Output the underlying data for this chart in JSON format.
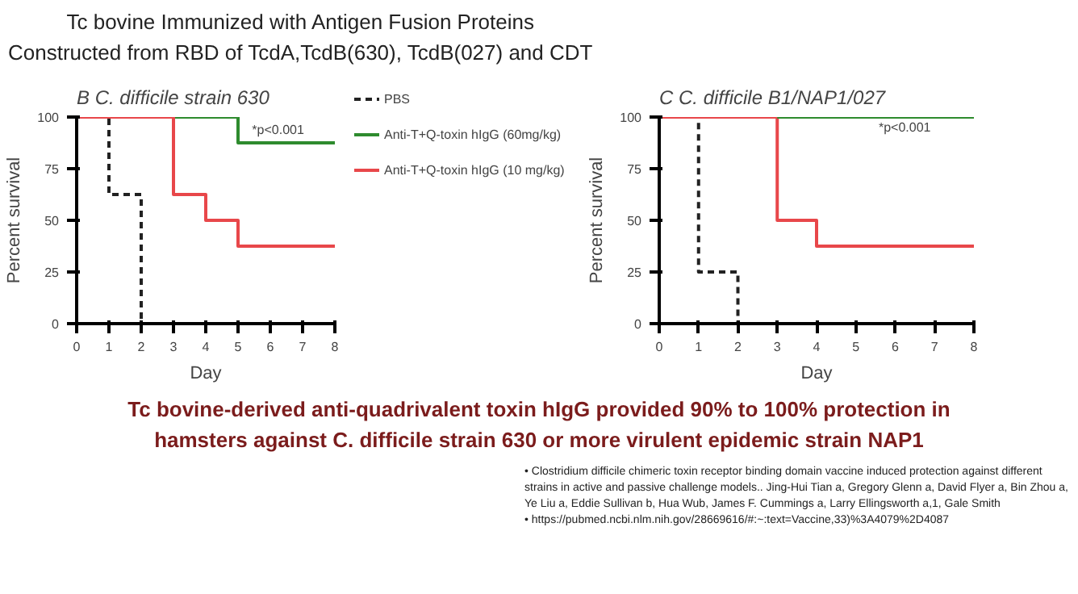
{
  "chart_data": [
    {
      "type": "step",
      "title": "B   C. difficile strain 630",
      "xlabel": "Day",
      "ylabel": "Percent survival",
      "xlim": [
        0,
        8
      ],
      "xticks": [
        0,
        1,
        2,
        3,
        4,
        5,
        6,
        7,
        8
      ],
      "ylim": [
        0,
        100
      ],
      "yticks": [
        0,
        25,
        50,
        75,
        100
      ],
      "grid": false,
      "legend": "right",
      "marker": "none",
      "annotations": [
        "Tc bovine Immunized with Antigen Fusion Proteins",
        "Constructed from RBD of TcdA,TcdB(630), TcdB(027) and CDT",
        "*p<0.001"
      ],
      "series": [
        {
          "name": "PBS",
          "color": "#222222",
          "line_style": "dashed",
          "x": [
            0,
            1,
            2
          ],
          "values": [
            100,
            62.5,
            0
          ]
        },
        {
          "name": "Anti-T+Q-toxin hIgG (60mg/kg)",
          "color": "#2e8b2e",
          "line_style": "solid",
          "x": [
            3,
            5,
            8
          ],
          "values": [
            100,
            87.5,
            87.5
          ]
        },
        {
          "name": "Anti-T+Q-toxin hIgG (10 mg/kg)",
          "color": "#e8474a",
          "line_style": "solid",
          "x": [
            0,
            3,
            4,
            5,
            8
          ],
          "values": [
            100,
            62.5,
            50,
            37.5,
            37.5
          ]
        }
      ]
    },
    {
      "type": "step",
      "title": "C   C. difficile B1/NAP1/027",
      "xlabel": "Day",
      "ylabel": "Percent survival",
      "xlim": [
        0,
        8
      ],
      "xticks": [
        0,
        1,
        2,
        3,
        4,
        5,
        6,
        7,
        8
      ],
      "ylim": [
        0,
        100
      ],
      "yticks": [
        0,
        25,
        50,
        75,
        100
      ],
      "grid": false,
      "marker": "none",
      "annotations": [
        "*p<0.001",
        "Tc bovine-derived anti-quadrivalent toxin hIgG provided 90% to 100% protection in",
        "hamsters against C. difficile strain 630 or more virulent epidemic strain NAP1",
        "• Clostridium difficile chimeric toxin receptor binding domain vaccine induced protection against different strains in active and passive challenge models.. Jing-Hui Tian a, Gregory Glenn a, David Flyer a, Bin Zhou a, Ye Liu a, Eddie Sullivan b, Hua Wub, James F. Cummings a, Larry Ellingsworth a,1, Gale Smith",
        "• https://pubmed.ncbi.nlm.nih.gov/28669616/#:~:text=Vaccine,33)%3A4079%2D4087"
      ],
      "series": [
        {
          "color": "#222222",
          "line_style": "dashed",
          "x": [
            0,
            1,
            2
          ],
          "values": [
            100,
            25,
            0
          ]
        },
        {
          "color": "#e8474a",
          "line_style": "solid",
          "x": [
            0,
            3,
            4,
            8
          ],
          "values": [
            100,
            50,
            37.5,
            37.5
          ]
        },
        {
          "color": "#2e8b2e",
          "line_style": "solid",
          "x": [
            3,
            8
          ],
          "values": [
            100,
            100
          ]
        }
      ]
    }
  ]
}
